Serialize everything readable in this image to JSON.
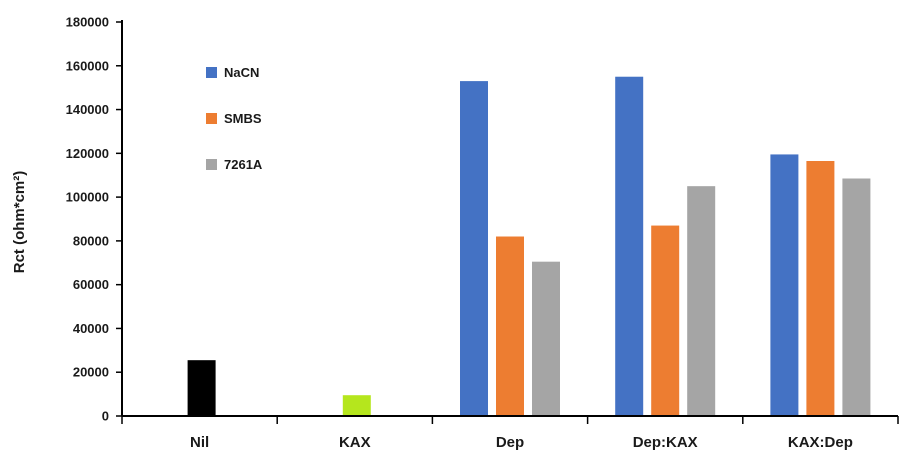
{
  "chart_data": {
    "type": "bar",
    "ylabel": "Rct (ohm*cm²)",
    "ylim": [
      0,
      180000
    ],
    "yticks": [
      0,
      20000,
      40000,
      60000,
      80000,
      100000,
      120000,
      140000,
      160000,
      180000
    ],
    "grid": false,
    "legend_position": "top-left",
    "categories": [
      "Nil",
      "KAX",
      "Dep",
      "Dep:KAX",
      "KAX:Dep"
    ],
    "series": [
      {
        "name": "NaCN",
        "color": "#4472C4",
        "values": [
          null,
          null,
          153000,
          155000,
          119500
        ]
      },
      {
        "name": "SMBS",
        "color": "#ED7D31",
        "values": [
          null,
          null,
          82000,
          87000,
          116500
        ]
      },
      {
        "name": "7261A",
        "color": "#A5A5A5",
        "values": [
          null,
          null,
          70500,
          105000,
          108500
        ]
      }
    ],
    "single_bars": [
      {
        "category": "Nil",
        "value": 25500,
        "color": "#000000"
      },
      {
        "category": "KAX",
        "value": 9500,
        "color": "#B5E61D"
      }
    ]
  }
}
